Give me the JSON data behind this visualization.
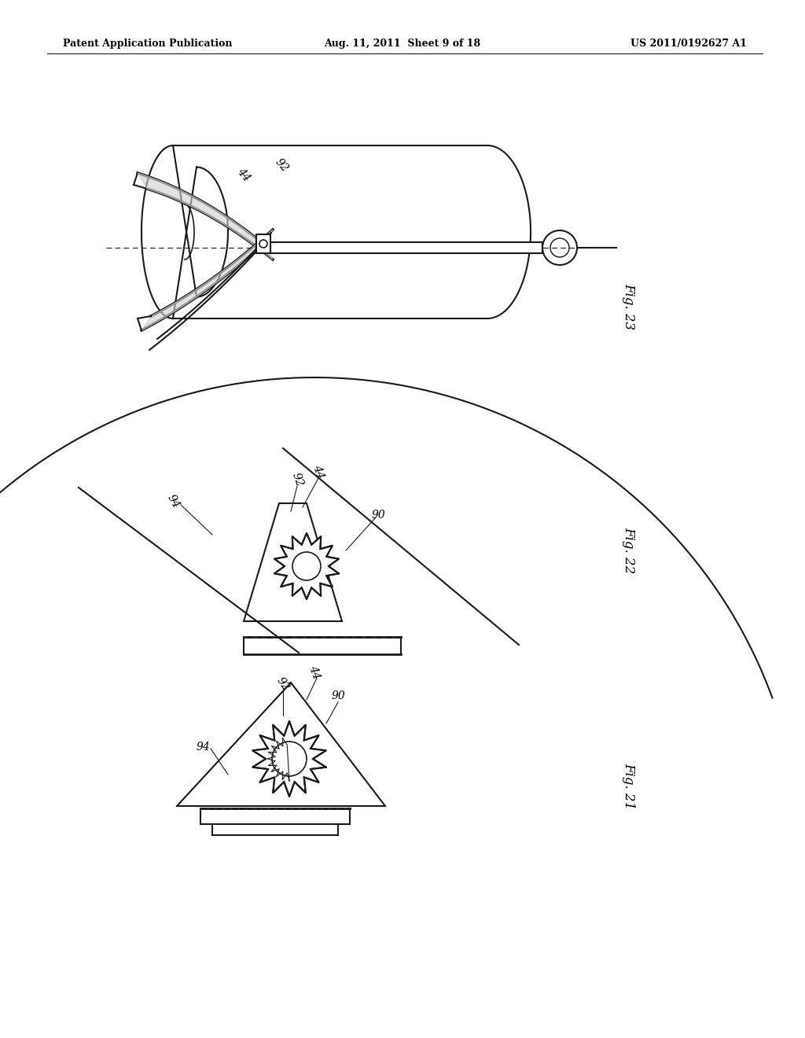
{
  "bg_color": "#ffffff",
  "line_color": "#1a1a1a",
  "header_left": "Patent Application Publication",
  "header_mid": "Aug. 11, 2011  Sheet 9 of 18",
  "header_right": "US 2011/0192627 A1",
  "fig23_label": "Fig. 23",
  "fig22_label": "Fig. 22",
  "fig21_label": "Fig. 21"
}
